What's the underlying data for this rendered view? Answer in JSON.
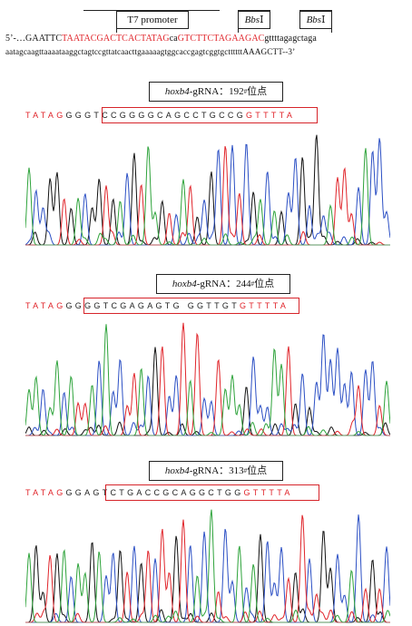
{
  "construct": {
    "t7_label": "T7 promoter",
    "bbs1_left_italic": "Bbs",
    "bbs1_left_roman": " Ⅰ",
    "bbs1_right_italic": "Bbs",
    "bbs1_right_roman": " Ⅰ",
    "seq_line1": {
      "prefix": "5’-…GAATTC",
      "t7": "TAATACGACTCACTATAG",
      "ca": "ca",
      "bbs1_site1": "GTCTTC",
      "spacer": "TA",
      "bbs1_site2": "GAAGAC",
      "tail": "gttttagagctaga"
    },
    "seq_line2": "aatagcaagttaaaataaggctagtccgttatcaacttgaaaaagtggcaccgagtcggtgcttttttAAAGCTT--3’"
  },
  "panels": [
    {
      "gene": "hoxb4",
      "suffix": "-gRNA：",
      "site": "192",
      "sup": "#",
      "cn": "位点",
      "prefix_bases": "TATAG",
      "boxed_bases": "GGGTCCGGGGCAGCCTGCCG",
      "suffix_bases": "GTTTTA"
    },
    {
      "gene": "hoxb4",
      "suffix": "-gRNA：",
      "site": "244",
      "sup": "#",
      "cn": "位点",
      "prefix_bases": "TATAG",
      "boxed_bases": "GGGGTCGAGAGTG GGTTGT",
      "suffix_bases": "GTTTTA"
    },
    {
      "gene": "hoxb4",
      "suffix": "-gRNA：",
      "site": "313",
      "sup": "#",
      "cn": "位点",
      "prefix_bases": "TATAG",
      "boxed_bases": "GGAGTCTGACCGCAGGCTGG",
      "suffix_bases": "GTTTTA"
    }
  ],
  "colors": {
    "A": "#2ea33b",
    "T": "#e0242a",
    "G": "#111111",
    "C": "#2b4fc4",
    "box": "#d6242a"
  }
}
